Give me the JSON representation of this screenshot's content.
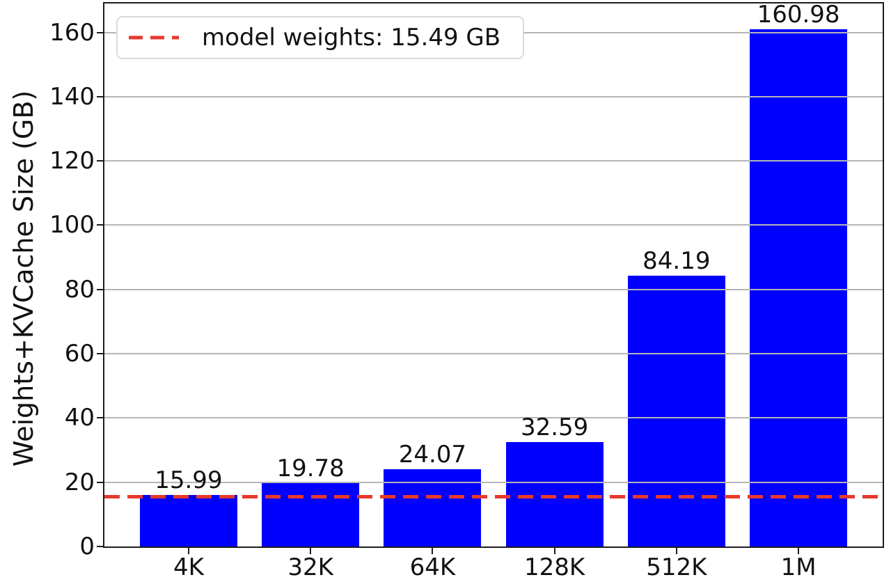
{
  "chart_data": {
    "type": "bar",
    "title": "",
    "categories": [
      "4K",
      "32K",
      "64K",
      "128K",
      "512K",
      "1M"
    ],
    "values": [
      15.99,
      19.78,
      24.07,
      32.59,
      84.19,
      160.98
    ],
    "bar_value_labels": [
      "15.99",
      "19.78",
      "24.07",
      "32.59",
      "84.19",
      "160.98"
    ],
    "xlabel": "",
    "ylabel": "Weights+KVCache Size (GB)",
    "yticks": [
      0,
      20,
      40,
      60,
      80,
      100,
      120,
      140,
      160
    ],
    "ylim": [
      0,
      169
    ],
    "grid": "horizontal",
    "grid_above_bars": true,
    "legend_position": "upper-left",
    "colors": {
      "bar": "#0000ff",
      "grid": "#b5b5b5",
      "axis": "#1c1c1c",
      "text": "#111111",
      "legend_border": "#d9d9d9"
    },
    "reference_line": {
      "value": 15.49,
      "label": "model weights: 15.49 GB",
      "color": "#e8392c",
      "style": "dashed"
    }
  }
}
